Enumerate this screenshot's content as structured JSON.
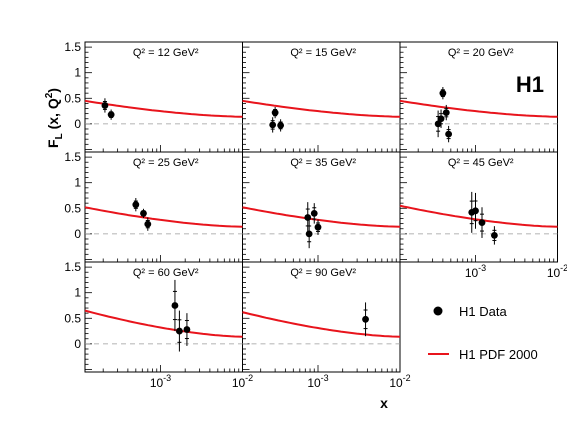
{
  "chart_data": {
    "type": "scatter",
    "ylabel": {
      "base": "F",
      "sub": "L",
      "args": " (x, Q",
      "sup": "2",
      "close": ")"
    },
    "xlabel": "x",
    "logo": "H1",
    "yticks": [
      "1.5",
      "1",
      "0.5",
      "0"
    ],
    "xticks": [
      {
        "base": "10",
        "exp": "-3",
        "value": 0.001
      },
      {
        "base": "10",
        "exp": "-2",
        "value": 0.01
      }
    ],
    "x_scale": "log",
    "xlim": [
      0.00012,
      0.01
    ],
    "ylim": [
      -0.55,
      1.6
    ],
    "reference_line": 0,
    "legend": [
      {
        "label": "H1 Data",
        "marker": "dot",
        "color": "#000000"
      },
      {
        "label": "H1 PDF 2000",
        "marker": "line",
        "color": "#e8141c"
      }
    ],
    "panels": [
      {
        "title": "Q² = 12 GeV²",
        "fit_y": [
          0.45,
          0.14
        ],
        "points": [
          {
            "x": 0.00021,
            "y": 0.36,
            "err": 0.14
          },
          {
            "x": 0.00025,
            "y": 0.18,
            "err": 0.1
          }
        ]
      },
      {
        "title": "Q² = 15 GeV²",
        "fit_y": [
          0.45,
          0.14
        ],
        "points": [
          {
            "x": 0.00028,
            "y": -0.02,
            "err": 0.15
          },
          {
            "x": 0.0003,
            "y": 0.22,
            "err": 0.11
          },
          {
            "x": 0.00035,
            "y": -0.03,
            "err": 0.12
          }
        ]
      },
      {
        "title": "Q² = 20 GeV²",
        "fit_y": [
          0.45,
          0.14
        ],
        "points": [
          {
            "x": 0.00035,
            "y": 0.0,
            "err": 0.26
          },
          {
            "x": 0.00038,
            "y": 0.1,
            "err": 0.18
          },
          {
            "x": 0.0004,
            "y": 0.6,
            "err": 0.12
          },
          {
            "x": 0.00044,
            "y": 0.22,
            "err": 0.15
          },
          {
            "x": 0.00047,
            "y": -0.2,
            "err": 0.16
          }
        ]
      },
      {
        "title": "Q² = 25 GeV²",
        "fit_y": [
          0.52,
          0.14
        ],
        "points": [
          {
            "x": 0.0005,
            "y": 0.57,
            "err": 0.13
          },
          {
            "x": 0.00062,
            "y": 0.4,
            "err": 0.09
          },
          {
            "x": 0.0007,
            "y": 0.19,
            "err": 0.13
          }
        ]
      },
      {
        "title": "Q² = 35 GeV²",
        "fit_y": [
          0.52,
          0.14
        ],
        "points": [
          {
            "x": 0.00075,
            "y": 0.32,
            "err": 0.3
          },
          {
            "x": 0.00078,
            "y": 0.0,
            "err": 0.28
          },
          {
            "x": 0.0009,
            "y": 0.4,
            "err": 0.2
          },
          {
            "x": 0.001,
            "y": 0.13,
            "err": 0.15
          }
        ]
      },
      {
        "title": "Q² = 45 GeV²",
        "fit_y": [
          0.55,
          0.14
        ],
        "points": [
          {
            "x": 0.0009,
            "y": 0.42,
            "err": 0.4
          },
          {
            "x": 0.001,
            "y": 0.45,
            "err": 0.35
          },
          {
            "x": 0.0012,
            "y": 0.22,
            "err": 0.3
          },
          {
            "x": 0.0017,
            "y": -0.03,
            "err": 0.18
          }
        ]
      },
      {
        "title": "Q² = 60 GeV²",
        "fit_y": [
          0.65,
          0.14
        ],
        "points": [
          {
            "x": 0.0015,
            "y": 0.75,
            "err": 0.5
          },
          {
            "x": 0.0017,
            "y": 0.25,
            "err": 0.4
          },
          {
            "x": 0.0021,
            "y": 0.28,
            "err": 0.32
          }
        ]
      },
      {
        "title": "Q² = 90 GeV²",
        "fit_y": [
          0.62,
          0.14
        ],
        "points": [
          {
            "x": 0.0038,
            "y": 0.48,
            "err": 0.33
          }
        ]
      }
    ]
  }
}
